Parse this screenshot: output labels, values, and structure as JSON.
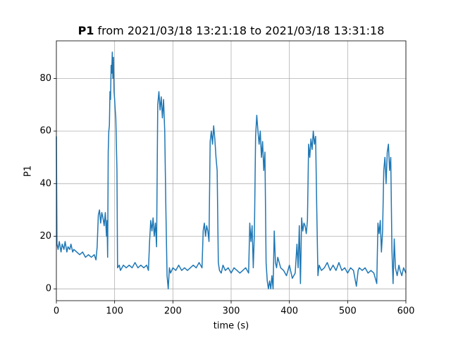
{
  "chart_data": {
    "type": "line",
    "title_name": "P1",
    "title": "from 2021/03/18 13:21:18 to 2021/03/18 13:31:18",
    "xlabel": "time (s)",
    "ylabel": "P1",
    "xlim": [
      0,
      600
    ],
    "xticks": [
      0,
      100,
      200,
      300,
      400,
      500,
      600
    ],
    "ylim": [
      -4.5,
      94.3
    ],
    "yticks": [
      0,
      20,
      40,
      60,
      80
    ],
    "grid": true,
    "series": [
      {
        "color": "#1f77b4",
        "x": [
          0,
          1,
          3,
          5,
          8,
          10,
          13,
          15,
          18,
          20,
          23,
          25,
          28,
          30,
          35,
          40,
          45,
          50,
          55,
          60,
          65,
          68,
          70,
          72,
          74,
          76,
          78,
          80,
          82,
          84,
          86,
          87,
          88,
          89,
          90,
          91,
          92,
          93,
          94,
          95,
          96,
          97,
          98,
          99,
          100,
          101,
          102,
          103,
          104,
          105,
          108,
          110,
          115,
          120,
          125,
          130,
          135,
          140,
          145,
          150,
          155,
          158,
          160,
          162,
          164,
          166,
          168,
          170,
          172,
          174,
          176,
          178,
          180,
          182,
          184,
          186,
          188,
          190,
          192,
          194,
          196,
          200,
          205,
          210,
          215,
          220,
          225,
          230,
          235,
          240,
          245,
          250,
          252,
          254,
          256,
          258,
          260,
          262,
          264,
          266,
          268,
          270,
          272,
          274,
          276,
          278,
          280,
          283,
          286,
          290,
          295,
          300,
          305,
          310,
          315,
          320,
          325,
          330,
          332,
          334,
          336,
          338,
          340,
          342,
          344,
          346,
          348,
          350,
          352,
          354,
          356,
          358,
          360,
          362,
          364,
          366,
          368,
          370,
          372,
          374,
          376,
          378,
          380,
          385,
          390,
          395,
          400,
          405,
          410,
          413,
          415,
          417,
          419,
          421,
          423,
          425,
          427,
          429,
          431,
          433,
          435,
          437,
          439,
          441,
          443,
          445,
          447,
          449,
          451,
          455,
          460,
          465,
          470,
          475,
          480,
          485,
          490,
          495,
          500,
          505,
          510,
          515,
          518,
          520,
          525,
          530,
          535,
          540,
          545,
          550,
          552,
          554,
          556,
          558,
          560,
          562,
          564,
          566,
          568,
          570,
          572,
          574,
          576,
          578,
          580,
          582,
          585,
          588,
          590,
          593,
          596,
          600
        ],
        "values": [
          58,
          17,
          15,
          18,
          14,
          17,
          15,
          18,
          14,
          16,
          15,
          17,
          14,
          15,
          14,
          13,
          14,
          12,
          13,
          12,
          13,
          11,
          16,
          28,
          30,
          25,
          29,
          27,
          24,
          29,
          20,
          26,
          12,
          52,
          60,
          62,
          75,
          72,
          85,
          82,
          90,
          80,
          88,
          75,
          72,
          68,
          65,
          55,
          45,
          8,
          9,
          7,
          9,
          8,
          9,
          8,
          10,
          8,
          9,
          8,
          9,
          7,
          18,
          26,
          22,
          27,
          20,
          25,
          16,
          70,
          75,
          68,
          73,
          65,
          72,
          60,
          30,
          5,
          0,
          8,
          6,
          8,
          7,
          9,
          7,
          8,
          7,
          8,
          9,
          8,
          10,
          8,
          22,
          25,
          20,
          24,
          22,
          18,
          56,
          60,
          55,
          62,
          57,
          50,
          45,
          10,
          7,
          6,
          9,
          7,
          8,
          6,
          8,
          7,
          6,
          7,
          8,
          6,
          25,
          18,
          24,
          8,
          22,
          58,
          66,
          60,
          55,
          60,
          50,
          56,
          45,
          52,
          10,
          3,
          0,
          3,
          0,
          5,
          0,
          22,
          10,
          8,
          12,
          8,
          7,
          5,
          9,
          4,
          6,
          17,
          8,
          24,
          2,
          27,
          22,
          25,
          24,
          21,
          26,
          55,
          50,
          57,
          53,
          60,
          55,
          58,
          30,
          5,
          9,
          7,
          8,
          10,
          7,
          9,
          7,
          10,
          7,
          8,
          6,
          8,
          7,
          1,
          7,
          8,
          7,
          8,
          6,
          7,
          6,
          2,
          25,
          21,
          26,
          14,
          22,
          45,
          50,
          40,
          52,
          55,
          45,
          50,
          15,
          2,
          19,
          8,
          5,
          9,
          7,
          5,
          8,
          6
        ]
      }
    ]
  }
}
